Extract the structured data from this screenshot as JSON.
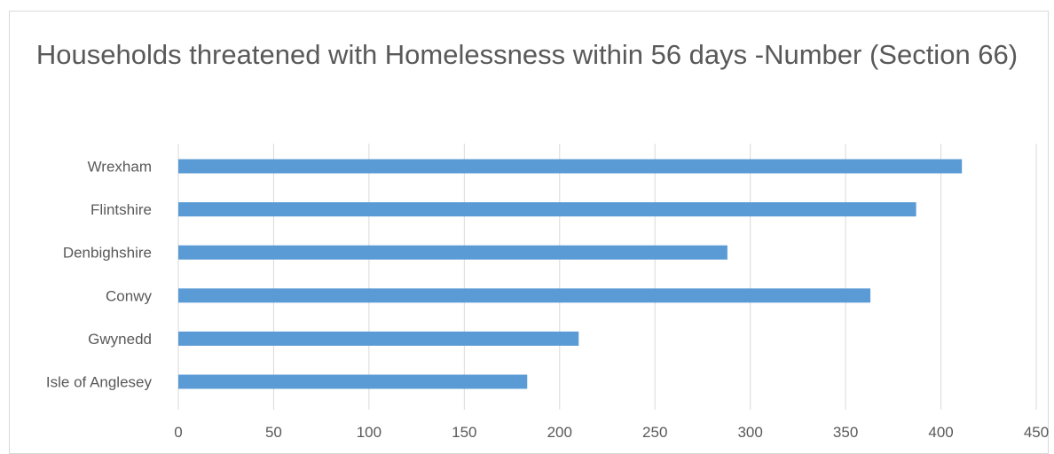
{
  "chart_data": {
    "type": "bar",
    "orientation": "horizontal",
    "title": "Households threatened with Homelessness within 56 days -Number (Section 66)",
    "categories": [
      "Wrexham",
      "Flintshire",
      "Denbighshire",
      "Conwy",
      "Gwynedd",
      "Isle of Anglesey"
    ],
    "values": [
      411,
      387,
      288,
      363,
      210,
      183
    ],
    "xlim": [
      0,
      450
    ],
    "x_ticks": [
      0,
      50,
      100,
      150,
      200,
      250,
      300,
      350,
      400,
      450
    ],
    "grid": "vertical",
    "legend": "none",
    "bar_color": "#5b9bd5",
    "grid_color": "#d9d9d9",
    "text_color": "#595959"
  }
}
